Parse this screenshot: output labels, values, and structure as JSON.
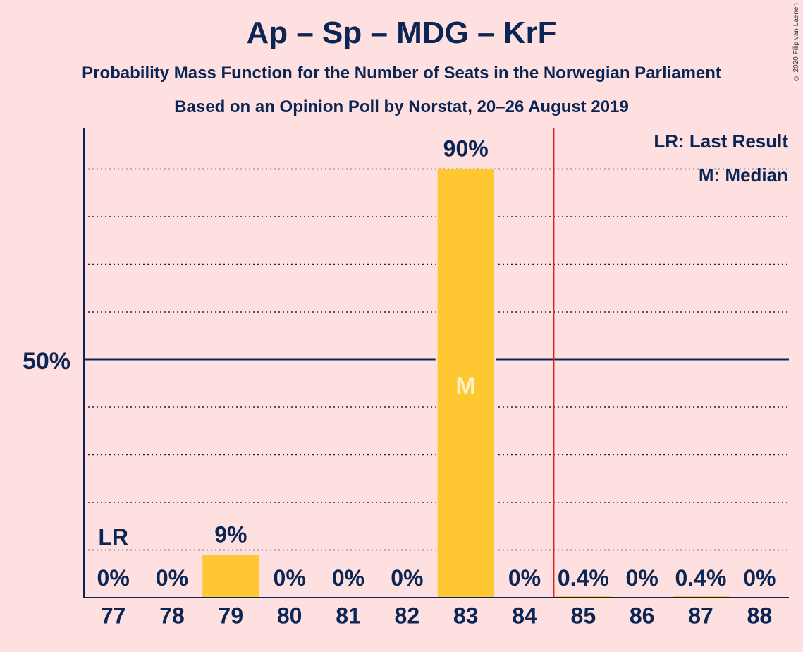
{
  "title": "Ap – Sp – MDG – KrF",
  "subtitle": "Probability Mass Function for the Number of Seats in the Norwegian Parliament",
  "subtitle2": "Based on an Opinion Poll by Norstat, 20–26 August 2019",
  "copyright": "© 2020 Filip van Laenen",
  "legend": {
    "lr": "LR: Last Result",
    "median": "M: Median"
  },
  "colors": {
    "bar": "#ffc832",
    "axis": "#0b2555",
    "majority": "#e02020",
    "background": "#ffe0e0"
  },
  "chart_data": {
    "type": "bar",
    "categories": [
      "77",
      "78",
      "79",
      "80",
      "81",
      "82",
      "83",
      "84",
      "85",
      "86",
      "87",
      "88"
    ],
    "values": [
      0,
      0,
      9,
      0,
      0,
      0,
      90,
      0,
      0.4,
      0,
      0.4,
      0
    ],
    "data_labels": [
      "0%",
      "0%",
      "9%",
      "0%",
      "0%",
      "0%",
      "90%",
      "0%",
      "0.4%",
      "0%",
      "0.4%",
      "0%"
    ],
    "ylim": [
      0,
      100
    ],
    "ytick_label": "50%",
    "ytick_value": 50,
    "last_result_seat": "77",
    "last_result_label": "LR",
    "median_seat": "83",
    "median_label": "M",
    "majority_threshold": 85
  }
}
